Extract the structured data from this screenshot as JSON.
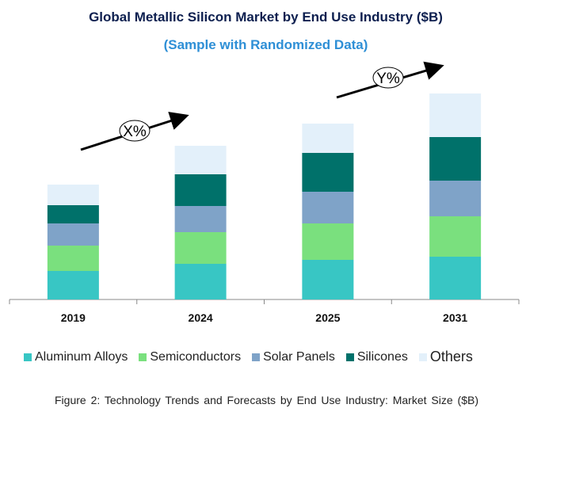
{
  "chart_data": {
    "type": "bar",
    "stacked": true,
    "title": "Global Metallic Silicon Market by End Use Industry ($B)",
    "subtitle": "(Sample with Randomized Data)",
    "categories": [
      "2019",
      "2024",
      "2025",
      "2031"
    ],
    "series": [
      {
        "name": "Aluminum Alloys",
        "color": "#38c6c4",
        "values": [
          36,
          45,
          50,
          54
        ]
      },
      {
        "name": "Semiconductors",
        "color": "#7ae07e",
        "values": [
          32,
          40,
          46,
          51
        ]
      },
      {
        "name": "Solar Panels",
        "color": "#7fa3c8",
        "values": [
          28,
          33,
          40,
          45
        ]
      },
      {
        "name": "Silicones",
        "color": "#00716a",
        "values": [
          23,
          40,
          49,
          55
        ]
      },
      {
        "name": "Others",
        "color": "#e3f0fa",
        "values": [
          26,
          36,
          37,
          55
        ]
      }
    ],
    "ylim": [
      0,
      260
    ],
    "y_axis_shown": false,
    "grid": false,
    "legend_placement": "bottom",
    "annotations": [
      "X%",
      "Y%"
    ],
    "caption": "Figure 2: Technology  Trends  and Forecasts by End Use Industry:  Market Size ($B)"
  }
}
